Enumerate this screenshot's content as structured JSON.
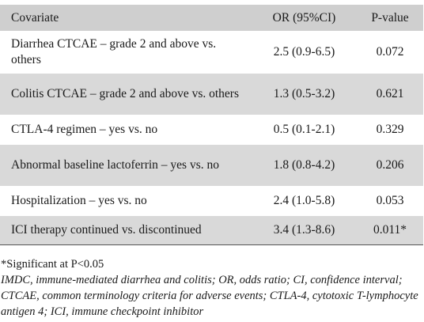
{
  "table": {
    "headers": [
      "Covariate",
      "OR (95%CI)",
      "P-value"
    ],
    "rows": [
      {
        "covariate": "Diarrhea CTCAE – grade 2 and above vs. others",
        "or": "2.5 (0.9-6.5)",
        "p": "0.072"
      },
      {
        "covariate": "Colitis CTCAE – grade 2 and above vs. others",
        "or": "1.3 (0.5-3.2)",
        "p": "0.621"
      },
      {
        "covariate": "CTLA-4 regimen – yes vs. no",
        "or": "0.5 (0.1-2.1)",
        "p": "0.329"
      },
      {
        "covariate": "Abnormal baseline lactoferrin – yes vs. no",
        "or": "1.8 (0.8-4.2)",
        "p": "0.206"
      },
      {
        "covariate": "Hospitalization – yes vs. no",
        "or": "2.4 (1.0-5.8)",
        "p": "0.053"
      },
      {
        "covariate": "ICI therapy continued vs. discontinued",
        "or": "3.4 (1.3-8.6)",
        "p": "0.011*"
      }
    ]
  },
  "footnotes": {
    "significance": "*Significant at P<0.05",
    "abbreviations": "IMDC, immune-mediated diarrhea and colitis; OR, odds ratio; CI, confidence interval; CTCAE, common terminology criteria for adverse events; CTLA-4, cytotoxic T-lymphocyte antigen 4; ICI, immune checkpoint inhibitor"
  }
}
